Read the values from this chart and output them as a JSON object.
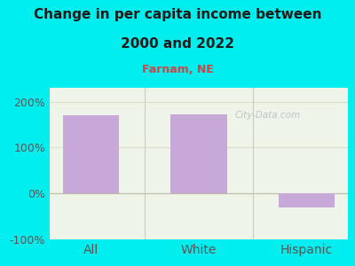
{
  "categories": [
    "All",
    "White",
    "Hispanic"
  ],
  "values": [
    170,
    172,
    -30
  ],
  "bar_color": "#c8a8d8",
  "title_line1": "Change in per capita income between",
  "title_line2": "2000 and 2022",
  "subtitle": "Farnam, NE",
  "subtitle_color": "#cc4444",
  "title_color": "#1a1a1a",
  "background_color": "#00eeee",
  "plot_bg_color": "#eef5e8",
  "ylim": [
    -100,
    230
  ],
  "yticks": [
    -100,
    0,
    100,
    200
  ],
  "ytick_labels": [
    "-100%",
    "0%",
    "100%",
    "200%"
  ],
  "grid_color": "#ddddcc",
  "watermark": "City-Data.com",
  "watermark_color": "#b0bec5",
  "title_fontsize": 11,
  "subtitle_fontsize": 9,
  "tick_fontsize": 9,
  "xtick_fontsize": 10
}
